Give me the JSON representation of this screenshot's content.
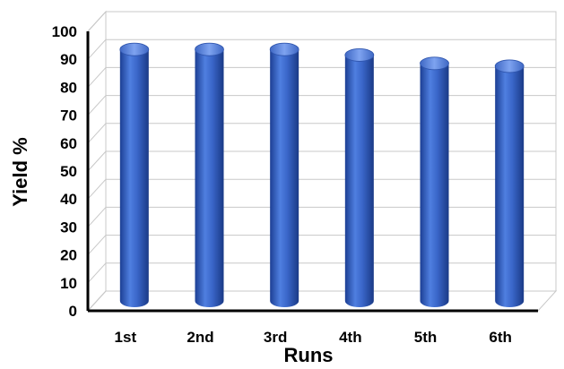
{
  "chart_data": {
    "type": "bar",
    "style": "3d-cylinder",
    "categories": [
      "1st",
      "2nd",
      "3rd",
      "4th",
      "5th",
      "6th"
    ],
    "values": [
      90,
      90,
      90,
      88,
      85,
      84
    ],
    "xlabel": "Runs",
    "ylabel": "Yield %",
    "ylim": [
      0,
      100
    ],
    "yticks": [
      "0",
      "10",
      "20",
      "30",
      "40",
      "50",
      "60",
      "70",
      "80",
      "90",
      "100"
    ],
    "grid": true,
    "legend": "none",
    "bar_color": "#3a63c4"
  }
}
